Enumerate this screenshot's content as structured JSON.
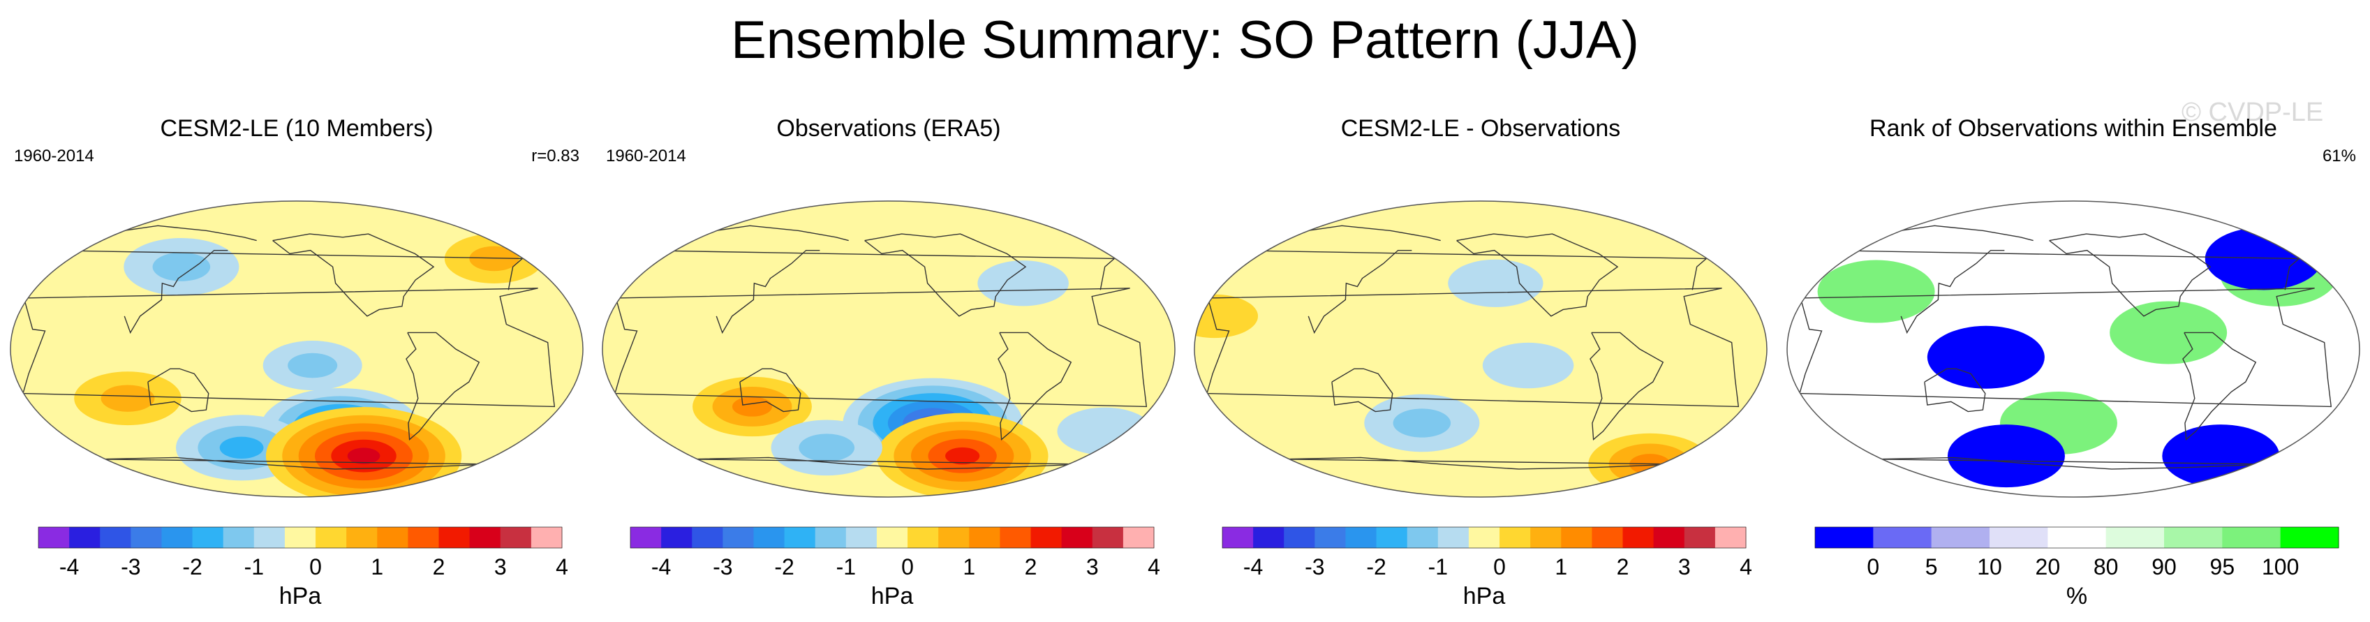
{
  "title": "Ensemble Summary: SO Pattern (JJA)",
  "watermark": "© CVDP-LE",
  "colors": {
    "coast": "#333333",
    "diff_scale": [
      "#8a2be2",
      "#2a1fe0",
      "#2f55e6",
      "#3b7ce8",
      "#2a95ee",
      "#2fb2f5",
      "#7ec8ee",
      "#b6dcf0",
      "#fff8a0",
      "#ffd730",
      "#ffb010",
      "#ff8c00",
      "#ff5a00",
      "#f21a00",
      "#d8001a",
      "#c83040",
      "#ffb0b0"
    ],
    "rank_scale": [
      "#0000ff",
      "#6a6af5",
      "#b0b0f0",
      "#e0e0f8",
      "#ffffff",
      "#ddfcdd",
      "#a8f7a8",
      "#7cf27c",
      "#00ff00"
    ]
  },
  "chart_data": [
    {
      "type": "heatmap",
      "title": "CESM2-LE (10 Members)",
      "period": "1960-2014",
      "stat": "r=0.83",
      "units": "hPa",
      "tick_labels": [
        "-4",
        "-3",
        "-2",
        "-1",
        "0",
        "1",
        "2",
        "3",
        "4"
      ],
      "features": [
        {
          "lon": -120,
          "lat": -48,
          "value": -2.3
        },
        {
          "lon": 170,
          "lat": -60,
          "value": -1.6
        },
        {
          "lon": -100,
          "lat": -65,
          "value": 3.2
        },
        {
          "lon": 130,
          "lat": 50,
          "value": -1.2
        },
        {
          "lon": -140,
          "lat": -10,
          "value": -0.8
        },
        {
          "lon": 100,
          "lat": -30,
          "value": 1.0
        },
        {
          "lon": -10,
          "lat": 55,
          "value": 0.8
        }
      ]
    },
    {
      "type": "heatmap",
      "title": "Observations (ERA5)",
      "period": "1960-2014",
      "stat": "",
      "units": "hPa",
      "tick_labels": [
        "-4",
        "-3",
        "-2",
        "-1",
        "0",
        "1",
        "2",
        "3",
        "4"
      ],
      "features": [
        {
          "lon": -120,
          "lat": -45,
          "value": -2.8
        },
        {
          "lon": -95,
          "lat": -65,
          "value": 2.6
        },
        {
          "lon": 120,
          "lat": -35,
          "value": 1.3
        },
        {
          "lon": 165,
          "lat": -60,
          "value": -1.1
        },
        {
          "lon": -60,
          "lat": 40,
          "value": -0.6
        },
        {
          "lon": 0,
          "lat": -50,
          "value": -0.7
        }
      ]
    },
    {
      "type": "heatmap",
      "title": "CESM2-LE - Observations",
      "period": "",
      "stat": "",
      "units": "hPa",
      "tick_labels": [
        "-4",
        "-3",
        "-2",
        "-1",
        "0",
        "1",
        "2",
        "3",
        "4"
      ],
      "features": [
        {
          "lon": 170,
          "lat": -45,
          "value": -1.2
        },
        {
          "lon": -20,
          "lat": -70,
          "value": 1.4
        },
        {
          "lon": -140,
          "lat": 40,
          "value": -0.7
        },
        {
          "lon": 40,
          "lat": 20,
          "value": 0.5
        },
        {
          "lon": -120,
          "lat": -10,
          "value": -0.6
        }
      ]
    },
    {
      "type": "heatmap",
      "title": "Rank of Observations within Ensemble",
      "period": "",
      "stat": "61%",
      "units": "%",
      "tick_labels": [
        "0",
        "5",
        "10",
        "20",
        "80",
        "90",
        "95",
        "100"
      ],
      "features": [
        {
          "lon": 155,
          "lat": -5,
          "value": 0
        },
        {
          "lon": -90,
          "lat": 10,
          "value": 100
        },
        {
          "lon": -160,
          "lat": -45,
          "value": 100
        },
        {
          "lon": 80,
          "lat": 35,
          "value": 100
        },
        {
          "lon": -10,
          "lat": 45,
          "value": 100
        },
        {
          "lon": -15,
          "lat": 55,
          "value": 0
        },
        {
          "lon": -40,
          "lat": -65,
          "value": 0
        },
        {
          "lon": 160,
          "lat": -65,
          "value": 0
        }
      ]
    }
  ]
}
